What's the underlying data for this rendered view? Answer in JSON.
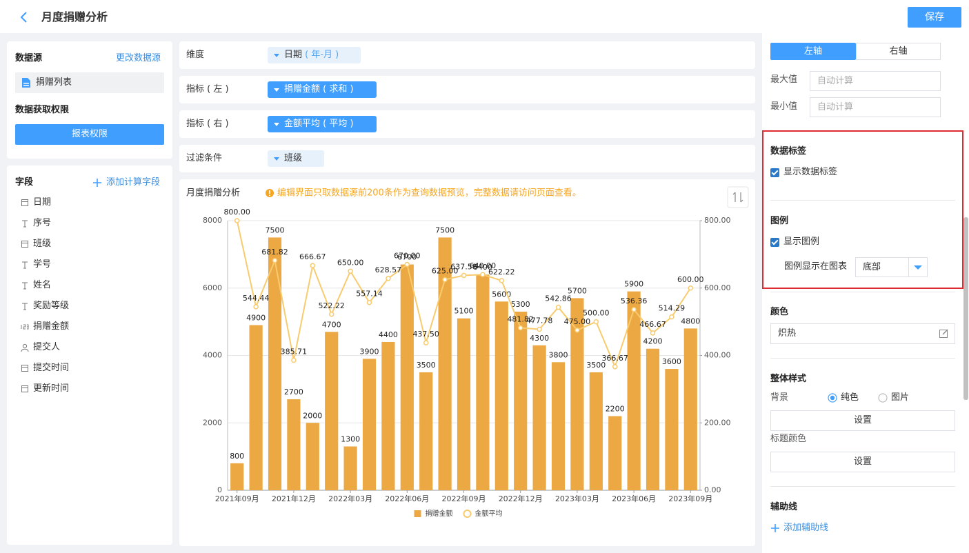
{
  "header": {
    "title": "月度捐赠分析",
    "save": "保存"
  },
  "left_panel": {
    "data_source_label": "数据源",
    "change_source": "更改数据源",
    "source_name": "捐赠列表",
    "permission_label": "数据获取权限",
    "permission_button": "报表权限",
    "fields_label": "字段",
    "add_field": "添加计算字段",
    "fields": [
      "日期",
      "序号",
      "班级",
      "学号",
      "姓名",
      "奖励等级",
      "捐赠金额",
      "提交人",
      "提交时间",
      "更新时间"
    ]
  },
  "config": {
    "dimension_label": "维度",
    "dimension_chip": "日期",
    "dimension_unit": "( 年-月 )",
    "left_metric_label": "指标 ( 左 )",
    "left_metric_chip": "捐赠金额 ( 求和 )",
    "right_metric_label": "指标 ( 右 )",
    "right_metric_chip": "金额平均 ( 平均 )",
    "filter_label": "过滤条件",
    "filter_chip": "班级"
  },
  "chart_data": {
    "type": "bar",
    "title": "月度捐赠分析",
    "notice": "编辑界面只取数据源前200条作为查询数据预览，完整数据请访问页面查看。",
    "categories": [
      "2021年09月",
      null,
      null,
      "2021年12月",
      null,
      null,
      "2022年03月",
      null,
      null,
      "2022年06月",
      null,
      null,
      "2022年09月",
      null,
      null,
      "2022年12月",
      null,
      null,
      "2023年03月",
      null,
      null,
      "2023年06月",
      null,
      null,
      "2023年09月"
    ],
    "series": [
      {
        "name": "捐赠金额",
        "type": "bar",
        "color": "#eba843",
        "values": [
          800,
          4900,
          7500,
          2700,
          2000,
          4700,
          1300,
          3900,
          4400,
          6700,
          3500,
          7500,
          5100,
          6400,
          5600,
          5300,
          4300,
          3800,
          5700,
          3500,
          2200,
          5900,
          4200,
          3600,
          4800
        ]
      },
      {
        "name": "金额平均",
        "type": "line",
        "axis": "y2",
        "color": "#f7cb6e",
        "values": [
          800,
          544.44,
          681.82,
          385.71,
          666.67,
          522.22,
          650,
          557.14,
          628.57,
          670,
          437.5,
          625,
          637.5,
          640,
          622.22,
          481.82,
          477.78,
          542.86,
          475,
          500,
          366.67,
          536.36,
          466.67,
          514.29,
          600
        ],
        "value_labels": [
          "800.00",
          "544.44",
          "681.82",
          "385.71",
          "666.67",
          "522.22",
          "650.00",
          "557.14",
          "628.57",
          "670.00",
          "437.50",
          "625.00",
          "637.50",
          "640.00",
          "622.22",
          "481.82",
          "477.78",
          "542.86",
          "475.00",
          "500.00",
          "366.67",
          "536.36",
          "466.67",
          "514.29",
          "600.00"
        ]
      }
    ],
    "ylim": [
      0,
      8000
    ],
    "yticks": [
      0,
      2000,
      4000,
      6000,
      8000
    ],
    "y2lim": [
      0,
      800
    ],
    "y2ticks": [
      {
        "value": 0,
        "label": "0.00"
      },
      {
        "value": 200,
        "label": "200.00"
      },
      {
        "value": 400,
        "label": "400.00"
      },
      {
        "value": 600,
        "label": "600.00"
      },
      {
        "value": 800,
        "label": "800.00"
      }
    ],
    "grid": true,
    "legend": "bottom",
    "data_labels": true
  },
  "right_panel": {
    "tab_left": "左轴",
    "tab_right": "右轴",
    "max_label": "最大值",
    "max_placeholder": "自动计算",
    "min_label": "最小值",
    "min_placeholder": "自动计算",
    "data_label_title": "数据标签",
    "show_data_labels": "显示数据标签",
    "legend_title": "图例",
    "show_legend": "显示图例",
    "legend_position_label": "图例显示在图表",
    "legend_position": "底部",
    "color_title": "颜色",
    "color_scheme": "炽热",
    "style_title": "整体样式",
    "background_label": "背景",
    "bg_solid": "纯色",
    "bg_image": "图片",
    "set_button": "设置",
    "title_color_label": "标题颜色",
    "set_button_2": "设置",
    "guide_title": "辅助线",
    "add_guide": "添加辅助线"
  }
}
